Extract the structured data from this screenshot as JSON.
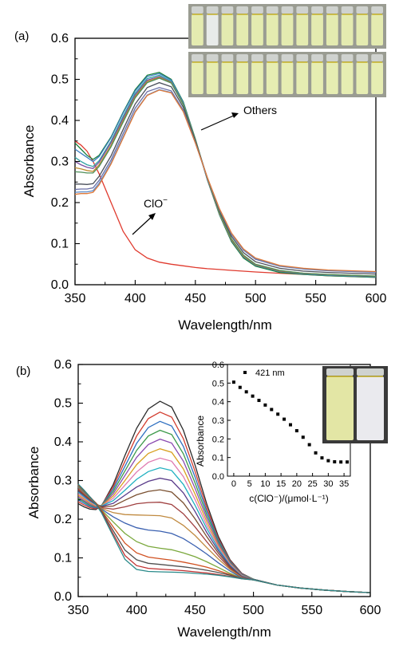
{
  "chart_data": [
    {
      "panel_label": "(a)",
      "type": "line",
      "xlabel": "Wavelength/nm",
      "ylabel": "Absorbance",
      "xlim": [
        350,
        600
      ],
      "ylim": [
        0.0,
        0.6
      ],
      "x_ticks": [
        "350",
        "400",
        "450",
        "500",
        "550",
        "600"
      ],
      "y_ticks": [
        "0.0",
        "0.1",
        "0.2",
        "0.3",
        "0.4",
        "0.5",
        "0.6"
      ],
      "x": [
        350,
        355,
        360,
        365,
        370,
        380,
        390,
        400,
        410,
        420,
        430,
        440,
        450,
        460,
        470,
        480,
        490,
        500,
        520,
        540,
        560,
        580,
        600
      ],
      "annotations": [
        {
          "text": "Others"
        },
        {
          "text": "ClO",
          "superscript": "−"
        }
      ],
      "inset_photos": 2,
      "series": [
        {
          "values": [
            0.35,
            0.34,
            0.325,
            0.3,
            0.27,
            0.2,
            0.13,
            0.085,
            0.065,
            0.055,
            0.05,
            0.046,
            0.042,
            0.039,
            0.037,
            0.035,
            0.033,
            0.031,
            0.028,
            0.025,
            0.022,
            0.02,
            0.018
          ],
          "color": "#e03a2e"
        },
        {
          "values": [
            0.345,
            0.33,
            0.315,
            0.305,
            0.315,
            0.36,
            0.42,
            0.475,
            0.51,
            0.517,
            0.5,
            0.445,
            0.355,
            0.255,
            0.17,
            0.105,
            0.065,
            0.045,
            0.03,
            0.025,
            0.022,
            0.02,
            0.018
          ],
          "color": "#1a7f3c"
        },
        {
          "values": [
            0.33,
            0.32,
            0.31,
            0.3,
            0.312,
            0.358,
            0.418,
            0.472,
            0.507,
            0.514,
            0.498,
            0.443,
            0.354,
            0.256,
            0.172,
            0.108,
            0.068,
            0.048,
            0.033,
            0.027,
            0.024,
            0.022,
            0.02
          ],
          "color": "#3a7fc0"
        },
        {
          "values": [
            0.31,
            0.3,
            0.292,
            0.288,
            0.302,
            0.35,
            0.41,
            0.466,
            0.502,
            0.51,
            0.495,
            0.44,
            0.352,
            0.255,
            0.172,
            0.108,
            0.068,
            0.047,
            0.032,
            0.026,
            0.023,
            0.021,
            0.019
          ],
          "color": "#2fa3a3"
        },
        {
          "values": [
            0.3,
            0.292,
            0.286,
            0.283,
            0.298,
            0.346,
            0.405,
            0.462,
            0.498,
            0.507,
            0.493,
            0.439,
            0.352,
            0.256,
            0.173,
            0.109,
            0.069,
            0.048,
            0.033,
            0.027,
            0.024,
            0.022,
            0.02
          ],
          "color": "#7a4fa0"
        },
        {
          "values": [
            0.285,
            0.282,
            0.278,
            0.276,
            0.292,
            0.34,
            0.4,
            0.458,
            0.495,
            0.505,
            0.492,
            0.439,
            0.353,
            0.257,
            0.174,
            0.11,
            0.07,
            0.049,
            0.034,
            0.028,
            0.025,
            0.023,
            0.021
          ],
          "color": "#c08a30"
        },
        {
          "values": [
            0.275,
            0.274,
            0.272,
            0.272,
            0.288,
            0.336,
            0.396,
            0.455,
            0.492,
            0.503,
            0.491,
            0.438,
            0.353,
            0.258,
            0.176,
            0.112,
            0.072,
            0.05,
            0.035,
            0.028,
            0.025,
            0.023,
            0.021
          ],
          "color": "#4f8f5a"
        },
        {
          "values": [
            0.245,
            0.245,
            0.244,
            0.246,
            0.264,
            0.314,
            0.378,
            0.44,
            0.48,
            0.492,
            0.482,
            0.432,
            0.35,
            0.26,
            0.18,
            0.118,
            0.078,
            0.056,
            0.04,
            0.033,
            0.03,
            0.028,
            0.026
          ],
          "color": "#4a4f5a"
        },
        {
          "values": [
            0.232,
            0.233,
            0.233,
            0.236,
            0.254,
            0.304,
            0.368,
            0.43,
            0.47,
            0.48,
            0.472,
            0.425,
            0.346,
            0.26,
            0.183,
            0.123,
            0.084,
            0.062,
            0.045,
            0.038,
            0.034,
            0.032,
            0.03
          ],
          "color": "#6a6fa8"
        },
        {
          "values": [
            0.225,
            0.226,
            0.226,
            0.229,
            0.247,
            0.297,
            0.36,
            0.422,
            0.462,
            0.475,
            0.468,
            0.422,
            0.345,
            0.26,
            0.184,
            0.125,
            0.086,
            0.064,
            0.046,
            0.039,
            0.035,
            0.033,
            0.031
          ],
          "color": "#5a8ac8"
        },
        {
          "values": [
            0.22,
            0.222,
            0.222,
            0.225,
            0.243,
            0.294,
            0.357,
            0.42,
            0.461,
            0.474,
            0.467,
            0.421,
            0.345,
            0.261,
            0.185,
            0.126,
            0.087,
            0.065,
            0.047,
            0.04,
            0.036,
            0.034,
            0.032
          ],
          "color": "#e07a3a"
        }
      ]
    },
    {
      "panel_label": "(b)",
      "type": "line",
      "xlabel": "Wavelength/nm",
      "ylabel": "Absorbance",
      "xlim": [
        350,
        600
      ],
      "ylim": [
        0.0,
        0.6
      ],
      "x_ticks": [
        "350",
        "400",
        "450",
        "500",
        "550",
        "600"
      ],
      "y_ticks": [
        "0.0",
        "0.1",
        "0.2",
        "0.3",
        "0.4",
        "0.5",
        "0.6"
      ],
      "x": [
        350,
        355,
        360,
        365,
        370,
        380,
        390,
        400,
        410,
        420,
        430,
        440,
        450,
        460,
        470,
        480,
        490,
        500,
        520,
        540,
        560,
        580,
        600
      ],
      "series": [
        {
          "values": [
            0.24,
            0.232,
            0.226,
            0.225,
            0.235,
            0.29,
            0.365,
            0.435,
            0.485,
            0.505,
            0.49,
            0.43,
            0.34,
            0.24,
            0.155,
            0.095,
            0.06,
            0.045,
            0.03,
            0.022,
            0.017,
            0.013,
            0.01
          ],
          "color": "#2a2a2a"
        },
        {
          "values": [
            0.245,
            0.237,
            0.23,
            0.227,
            0.236,
            0.284,
            0.35,
            0.415,
            0.46,
            0.477,
            0.464,
            0.408,
            0.324,
            0.23,
            0.15,
            0.093,
            0.059,
            0.045,
            0.03,
            0.022,
            0.017,
            0.013,
            0.01
          ],
          "color": "#d23c2e"
        },
        {
          "values": [
            0.25,
            0.241,
            0.233,
            0.229,
            0.236,
            0.278,
            0.337,
            0.396,
            0.437,
            0.453,
            0.441,
            0.388,
            0.309,
            0.221,
            0.146,
            0.091,
            0.058,
            0.045,
            0.03,
            0.022,
            0.017,
            0.013,
            0.01
          ],
          "color": "#2e6fc0"
        },
        {
          "values": [
            0.254,
            0.245,
            0.236,
            0.231,
            0.236,
            0.272,
            0.325,
            0.378,
            0.415,
            0.43,
            0.419,
            0.369,
            0.294,
            0.212,
            0.142,
            0.089,
            0.057,
            0.045,
            0.03,
            0.022,
            0.017,
            0.013,
            0.01
          ],
          "color": "#3c9a4a"
        },
        {
          "values": [
            0.258,
            0.248,
            0.239,
            0.232,
            0.235,
            0.266,
            0.313,
            0.36,
            0.393,
            0.407,
            0.397,
            0.35,
            0.28,
            0.203,
            0.137,
            0.087,
            0.056,
            0.044,
            0.03,
            0.022,
            0.017,
            0.013,
            0.01
          ],
          "color": "#8a4ab0"
        },
        {
          "values": [
            0.262,
            0.252,
            0.242,
            0.234,
            0.235,
            0.26,
            0.3,
            0.341,
            0.37,
            0.382,
            0.373,
            0.33,
            0.265,
            0.194,
            0.132,
            0.085,
            0.055,
            0.044,
            0.03,
            0.022,
            0.017,
            0.013,
            0.01
          ],
          "color": "#d8a020"
        },
        {
          "values": [
            0.266,
            0.255,
            0.245,
            0.236,
            0.234,
            0.254,
            0.288,
            0.322,
            0.347,
            0.358,
            0.35,
            0.31,
            0.251,
            0.185,
            0.128,
            0.083,
            0.054,
            0.044,
            0.03,
            0.022,
            0.017,
            0.013,
            0.01
          ],
          "color": "#e07ab0"
        },
        {
          "values": [
            0.27,
            0.258,
            0.247,
            0.238,
            0.234,
            0.248,
            0.275,
            0.303,
            0.323,
            0.333,
            0.326,
            0.29,
            0.236,
            0.176,
            0.123,
            0.081,
            0.053,
            0.044,
            0.03,
            0.022,
            0.017,
            0.013,
            0.01
          ],
          "color": "#20b0c0"
        },
        {
          "values": [
            0.273,
            0.261,
            0.249,
            0.239,
            0.233,
            0.241,
            0.262,
            0.283,
            0.298,
            0.306,
            0.3,
            0.268,
            0.22,
            0.166,
            0.118,
            0.079,
            0.052,
            0.044,
            0.03,
            0.022,
            0.017,
            0.013,
            0.01
          ],
          "color": "#5a3c8a"
        },
        {
          "values": [
            0.276,
            0.263,
            0.251,
            0.24,
            0.232,
            0.234,
            0.249,
            0.263,
            0.272,
            0.276,
            0.27,
            0.242,
            0.201,
            0.155,
            0.112,
            0.076,
            0.051,
            0.044,
            0.03,
            0.022,
            0.017,
            0.013,
            0.01
          ],
          "color": "#7a5030"
        },
        {
          "values": [
            0.279,
            0.266,
            0.253,
            0.241,
            0.23,
            0.226,
            0.232,
            0.24,
            0.243,
            0.244,
            0.238,
            0.214,
            0.18,
            0.142,
            0.105,
            0.073,
            0.05,
            0.044,
            0.03,
            0.022,
            0.017,
            0.013,
            0.01
          ],
          "color": "#a04040"
        },
        {
          "values": [
            0.282,
            0.268,
            0.255,
            0.242,
            0.228,
            0.217,
            0.212,
            0.211,
            0.21,
            0.209,
            0.203,
            0.184,
            0.158,
            0.127,
            0.097,
            0.07,
            0.049,
            0.044,
            0.03,
            0.022,
            0.017,
            0.013,
            0.01
          ],
          "color": "#c08a40"
        },
        {
          "values": [
            0.284,
            0.27,
            0.256,
            0.242,
            0.226,
            0.206,
            0.19,
            0.178,
            0.172,
            0.169,
            0.163,
            0.15,
            0.131,
            0.11,
            0.087,
            0.066,
            0.048,
            0.044,
            0.03,
            0.022,
            0.017,
            0.013,
            0.01
          ],
          "color": "#3a60b0"
        },
        {
          "values": [
            0.286,
            0.272,
            0.257,
            0.242,
            0.224,
            0.193,
            0.163,
            0.142,
            0.13,
            0.125,
            0.121,
            0.113,
            0.103,
            0.09,
            0.075,
            0.06,
            0.047,
            0.043,
            0.03,
            0.022,
            0.017,
            0.013,
            0.01
          ],
          "color": "#7aa83c"
        },
        {
          "values": [
            0.288,
            0.273,
            0.258,
            0.242,
            0.222,
            0.18,
            0.138,
            0.113,
            0.102,
            0.098,
            0.094,
            0.089,
            0.083,
            0.076,
            0.067,
            0.057,
            0.047,
            0.043,
            0.03,
            0.022,
            0.017,
            0.013,
            0.01
          ],
          "color": "#d05020"
        },
        {
          "values": [
            0.289,
            0.274,
            0.258,
            0.241,
            0.22,
            0.17,
            0.12,
            0.095,
            0.086,
            0.083,
            0.08,
            0.077,
            0.073,
            0.068,
            0.062,
            0.055,
            0.047,
            0.043,
            0.03,
            0.022,
            0.017,
            0.013,
            0.01
          ],
          "color": "#505050"
        },
        {
          "values": [
            0.29,
            0.275,
            0.258,
            0.24,
            0.218,
            0.162,
            0.106,
            0.08,
            0.073,
            0.071,
            0.069,
            0.067,
            0.064,
            0.061,
            0.057,
            0.052,
            0.046,
            0.043,
            0.03,
            0.022,
            0.017,
            0.013,
            0.01
          ],
          "color": "#c03030"
        },
        {
          "values": [
            0.291,
            0.275,
            0.258,
            0.239,
            0.216,
            0.156,
            0.096,
            0.07,
            0.065,
            0.064,
            0.063,
            0.062,
            0.06,
            0.058,
            0.055,
            0.051,
            0.046,
            0.043,
            0.03,
            0.022,
            0.017,
            0.013,
            0.01
          ],
          "color": "#2a8a8a"
        }
      ],
      "inset": {
        "type": "scatter",
        "xlabel": "c(ClO⁻)/(μmol·L⁻¹)",
        "ylabel": "Absorbance",
        "legend": "421 nm",
        "xlim": [
          -2,
          37
        ],
        "ylim": [
          0.0,
          0.6
        ],
        "x_ticks": [
          "0",
          "5",
          "10",
          "15",
          "20",
          "25",
          "30",
          "35"
        ],
        "y_ticks": [
          "0.0",
          "0.1",
          "0.2",
          "0.3",
          "0.4",
          "0.5",
          "0.6"
        ],
        "x": [
          0,
          2,
          4,
          6,
          8,
          10,
          12,
          14,
          16,
          18,
          20,
          22,
          24,
          26,
          28,
          30,
          32,
          34,
          36
        ],
        "y": [
          0.505,
          0.477,
          0.453,
          0.43,
          0.407,
          0.382,
          0.358,
          0.333,
          0.306,
          0.276,
          0.244,
          0.209,
          0.169,
          0.125,
          0.098,
          0.083,
          0.077,
          0.076,
          0.076
        ],
        "photo_vials": 2
      }
    }
  ]
}
